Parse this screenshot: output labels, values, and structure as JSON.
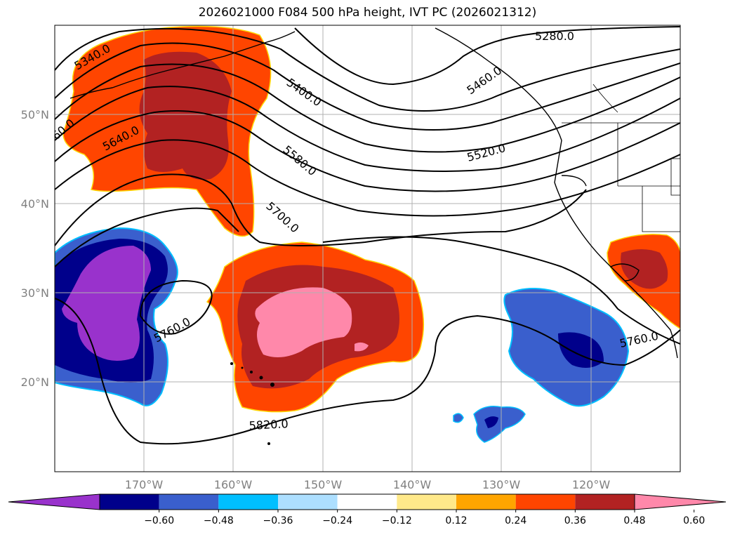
{
  "title": "2026021000 F084 500 hPa height, IVT PC (2026021312)",
  "lat_labels": [
    "50°N",
    "40°N",
    "30°N",
    "20°N"
  ],
  "lon_labels": [
    "170°W",
    "160°W",
    "150°W",
    "140°W",
    "130°W",
    "120°W"
  ],
  "contour_labels": [
    "5280.0",
    "5340.0",
    "5400.0",
    "5460.0",
    "5520.0",
    "5580.0",
    "5640.0",
    "5700.0",
    "5760.0",
    "5760.0",
    "5820.0",
    "60.0"
  ],
  "colorbar": {
    "ticks": [
      "−0.60",
      "−0.48",
      "−0.36",
      "−0.24",
      "−0.12",
      "0.12",
      "0.24",
      "0.36",
      "0.48",
      "0.60"
    ],
    "colors": [
      "#9932CC",
      "#00008B",
      "#3A5FCD",
      "#00BFFF",
      "#ADDFFF",
      "#FFFFFF",
      "#FFE98A",
      "#FFA500",
      "#FF4500",
      "#B22222",
      "#FF88AA"
    ]
  }
}
